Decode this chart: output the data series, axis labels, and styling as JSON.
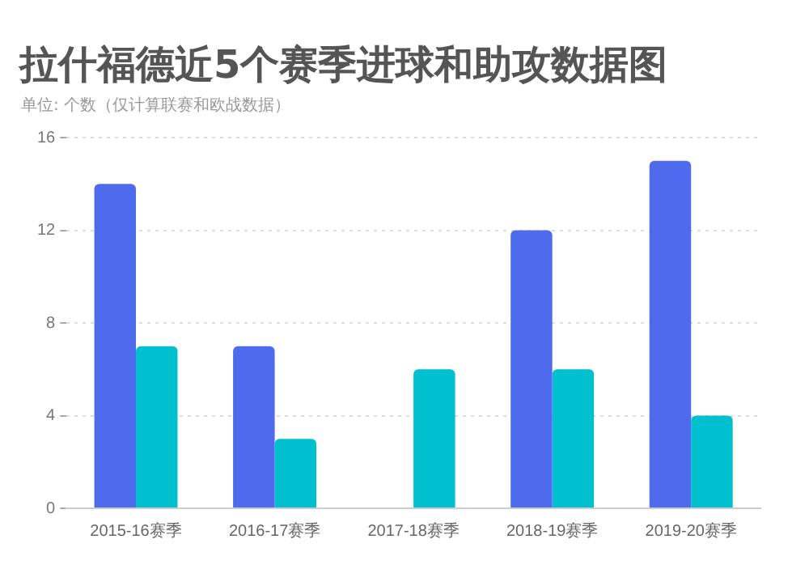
{
  "chart_data": {
    "type": "bar",
    "title": "拉什福德近5个赛季进球和助攻数据图",
    "subtitle": "单位: 个数（仅计算联赛和欧战数据）",
    "categories": [
      "2015-16赛季",
      "2016-17赛季",
      "2017-18赛季",
      "2018-19赛季",
      "2019-20赛季"
    ],
    "series": [
      {
        "color": "#4f6bed",
        "values": [
          14,
          7,
          null,
          12,
          15
        ]
      },
      {
        "color": "#00c0d0",
        "values": [
          7,
          3,
          6,
          6,
          4
        ]
      }
    ],
    "ylim": [
      0,
      16
    ],
    "yticks": [
      0,
      4,
      8,
      12,
      16
    ],
    "grid": "y",
    "legend": false
  }
}
